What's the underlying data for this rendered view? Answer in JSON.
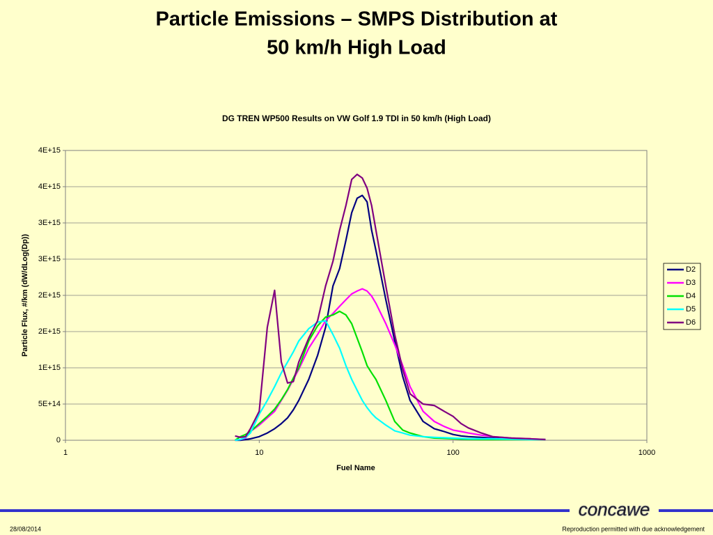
{
  "slide": {
    "title": [
      "Particle Emissions – SMPS Distribution at",
      "50 km/h High Load"
    ],
    "date": "28/08/2014",
    "footer": "Reproduction permitted with due acknowledgement",
    "logo": "concawe"
  },
  "chart_data": {
    "type": "line",
    "title": "DG TREN WP500 Results on VW Golf 1.9 TDI in 50 km/h (High Load)",
    "x_label": "Fuel Name",
    "y_label": "Particle Flux, #/km (dW/dLog(Dp))",
    "log_x": true,
    "grid": true,
    "legend": "right",
    "xlim": [
      1,
      1000
    ],
    "xticks": [
      1,
      10,
      100,
      1000
    ],
    "ylim": [
      0,
      4000000000000000.0
    ],
    "yticks": [
      0,
      {
        "value": 500000000000000.0,
        "label": "5E+14"
      },
      {
        "value": 1000000000000000.0,
        "label": "1E+15"
      },
      {
        "value": 1500000000000000.0,
        "label": "2E+15"
      },
      {
        "value": 2000000000000000.0,
        "label": "2E+15"
      },
      {
        "value": 2500000000000000.0,
        "label": "3E+15"
      },
      {
        "value": 3000000000000000.0,
        "label": "3E+15"
      },
      {
        "value": 3500000000000000.0,
        "label": "4E+15"
      },
      {
        "value": 4000000000000000.0,
        "label": "4E+15"
      }
    ],
    "x": [
      7.5,
      8,
      8.5,
      9,
      10,
      11,
      12,
      13,
      14,
      15,
      16,
      18,
      20,
      22,
      24,
      26,
      28,
      30,
      32,
      34,
      36,
      38,
      40,
      45,
      50,
      55,
      60,
      70,
      80,
      90,
      100,
      110,
      120,
      140,
      160,
      200,
      250,
      300
    ],
    "series": [
      {
        "name": "D2",
        "color": "#000080",
        "values": [
          0,
          0,
          10000000000000.0,
          20000000000000.0,
          50000000000000.0,
          100000000000000.0,
          160000000000000.0,
          230000000000000.0,
          310000000000000.0,
          420000000000000.0,
          550000000000000.0,
          840000000000000.0,
          1170000000000000.0,
          1560000000000000.0,
          2130000000000000.0,
          2370000000000000.0,
          2760000000000000.0,
          3140000000000000.0,
          3340000000000000.0,
          3380000000000000.0,
          3290000000000000.0,
          2900000000000000.0,
          2620000000000000.0,
          1940000000000000.0,
          1370000000000000.0,
          880000000000000.0,
          550000000000000.0,
          260000000000000.0,
          160000000000000.0,
          120000000000000.0,
          80000000000000.0,
          60000000000000.0,
          50000000000000.0,
          40000000000000.0,
          30000000000000.0,
          20000000000000.0,
          15000000000000.0,
          10000000000000.0
        ]
      },
      {
        "name": "D3",
        "color": "#ff00ff",
        "values": [
          0,
          10000000000000.0,
          30000000000000.0,
          120000000000000.0,
          210000000000000.0,
          310000000000000.0,
          400000000000000.0,
          550000000000000.0,
          690000000000000.0,
          840000000000000.0,
          980000000000000.0,
          1270000000000000.0,
          1460000000000000.0,
          1650000000000000.0,
          1750000000000000.0,
          1850000000000000.0,
          1940000000000000.0,
          2020000000000000.0,
          2060000000000000.0,
          2090000000000000.0,
          2060000000000000.0,
          1990000000000000.0,
          1890000000000000.0,
          1610000000000000.0,
          1320000000000000.0,
          1030000000000000.0,
          740000000000000.0,
          400000000000000.0,
          260000000000000.0,
          190000000000000.0,
          140000000000000.0,
          120000000000000.0,
          100000000000000.0,
          70000000000000.0,
          50000000000000.0,
          30000000000000.0,
          20000000000000.0,
          10000000000000.0
        ]
      },
      {
        "name": "D4",
        "color": "#00e000",
        "values": [
          0,
          50000000000000.0,
          80000000000000.0,
          120000000000000.0,
          230000000000000.0,
          330000000000000.0,
          430000000000000.0,
          560000000000000.0,
          700000000000000.0,
          860000000000000.0,
          1000000000000000.0,
          1370000000000000.0,
          1580000000000000.0,
          1700000000000000.0,
          1730000000000000.0,
          1780000000000000.0,
          1730000000000000.0,
          1610000000000000.0,
          1410000000000000.0,
          1220000000000000.0,
          1030000000000000.0,
          930000000000000.0,
          840000000000000.0,
          550000000000000.0,
          260000000000000.0,
          140000000000000.0,
          100000000000000.0,
          50000000000000.0,
          30000000000000.0,
          25000000000000.0,
          20000000000000.0,
          15000000000000.0,
          12000000000000.0,
          10000000000000.0,
          10000000000000.0,
          10000000000000.0,
          10000000000000.0,
          10000000000000.0
        ]
      },
      {
        "name": "D5",
        "color": "#00ffff",
        "values": [
          0,
          10000000000000.0,
          40000000000000.0,
          100000000000000.0,
          360000000000000.0,
          550000000000000.0,
          740000000000000.0,
          930000000000000.0,
          1080000000000000.0,
          1220000000000000.0,
          1370000000000000.0,
          1540000000000000.0,
          1630000000000000.0,
          1650000000000000.0,
          1460000000000000.0,
          1270000000000000.0,
          1030000000000000.0,
          840000000000000.0,
          690000000000000.0,
          550000000000000.0,
          450000000000000.0,
          370000000000000.0,
          310000000000000.0,
          210000000000000.0,
          130000000000000.0,
          100000000000000.0,
          70000000000000.0,
          50000000000000.0,
          40000000000000.0,
          35000000000000.0,
          30000000000000.0,
          25000000000000.0,
          20000000000000.0,
          20000000000000.0,
          20000000000000.0,
          15000000000000.0,
          10000000000000.0,
          10000000000000.0
        ]
      },
      {
        "name": "D6",
        "color": "#800080",
        "values": [
          60000000000000.0,
          40000000000000.0,
          50000000000000.0,
          160000000000000.0,
          400000000000000.0,
          1560000000000000.0,
          2070000000000000.0,
          1080000000000000.0,
          790000000000000.0,
          810000000000000.0,
          1080000000000000.0,
          1410000000000000.0,
          1650000000000000.0,
          2130000000000000.0,
          2470000000000000.0,
          2900000000000000.0,
          3240000000000000.0,
          3600000000000000.0,
          3670000000000000.0,
          3620000000000000.0,
          3480000000000000.0,
          3240000000000000.0,
          2900000000000000.0,
          2130000000000000.0,
          1460000000000000.0,
          980000000000000.0,
          640000000000000.0,
          500000000000000.0,
          480000000000000.0,
          400000000000000.0,
          330000000000000.0,
          230000000000000.0,
          170000000000000.0,
          100000000000000.0,
          50000000000000.0,
          30000000000000.0,
          20000000000000.0,
          10000000000000.0
        ]
      }
    ]
  }
}
